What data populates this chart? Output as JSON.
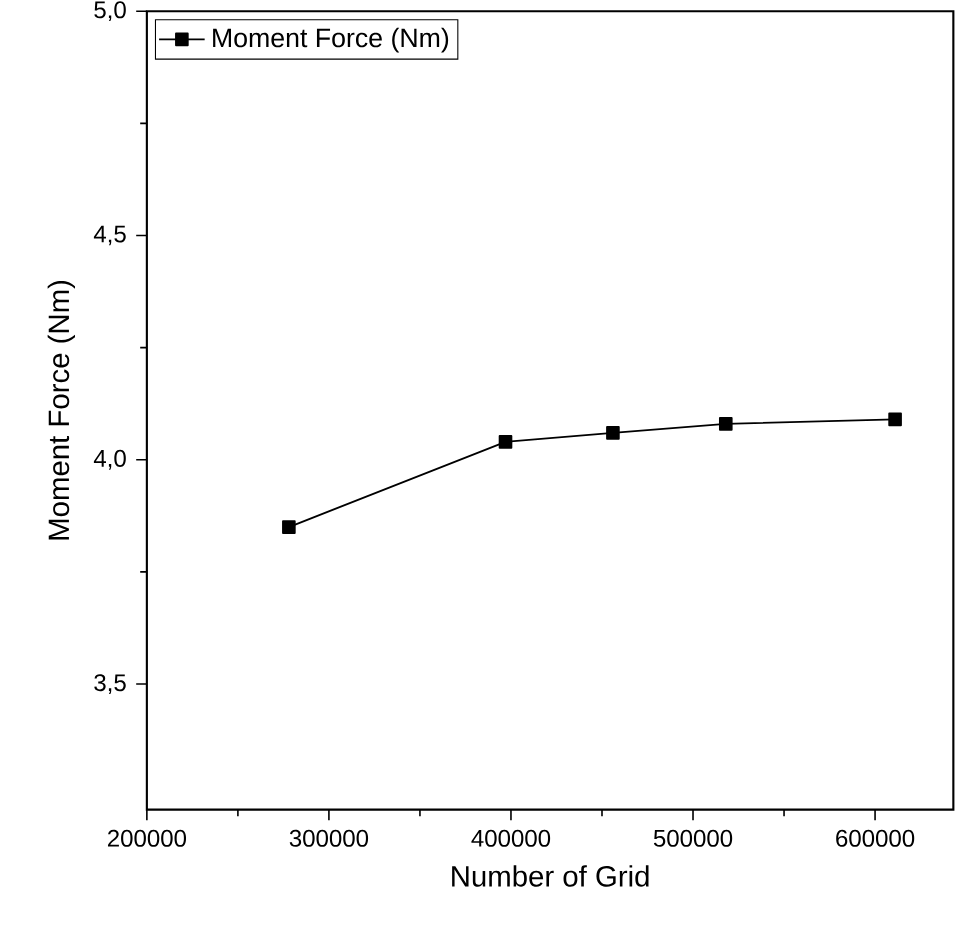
{
  "chart_data": {
    "type": "line",
    "xlabel": "Number of Grid",
    "ylabel": "Moment Force (Nm)",
    "x": [
      278000,
      397000,
      456000,
      518000,
      611000
    ],
    "series": [
      {
        "name": "Moment Force (Nm)",
        "color": "#000000",
        "values": [
          3.85,
          4.04,
          4.06,
          4.08,
          4.09
        ]
      }
    ],
    "xlim": [
      200000,
      643000
    ],
    "ylim": [
      3.22,
      5.0
    ],
    "xticks": [
      200000,
      300000,
      400000,
      500000,
      600000
    ],
    "yticks": [
      {
        "value": 3.5,
        "label": "3,5"
      },
      {
        "value": 4.0,
        "label": "4,0"
      },
      {
        "value": 4.5,
        "label": "4,5"
      },
      {
        "value": 5.0,
        "label": "5,0"
      }
    ],
    "legend": "top left",
    "marker": "square",
    "line_style": "solid",
    "grid": false
  }
}
